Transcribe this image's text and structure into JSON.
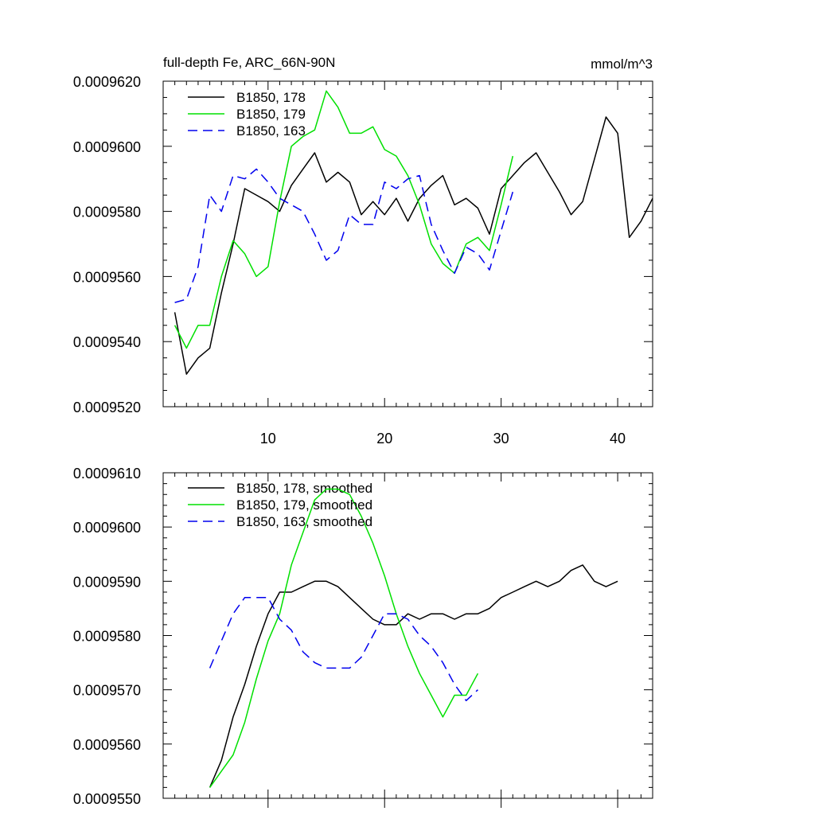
{
  "chart_data": [
    {
      "type": "line",
      "title": "full-depth Fe, ARC_66N-90N",
      "units": "mmol/m^3",
      "xlabel": "",
      "ylabel": "",
      "xlim": [
        1,
        43
      ],
      "ylim": [
        0.000952,
        0.000962
      ],
      "xticks": [
        "10",
        "20",
        "30",
        "40"
      ],
      "yticks": [
        "0.0009520",
        "0.0009540",
        "0.0009560",
        "0.0009580",
        "0.0009600",
        "0.0009620"
      ],
      "legend_position": "top-left",
      "series": [
        {
          "name": "B1850, 178",
          "color": "#000000",
          "dash": "solid",
          "x": [
            2,
            3,
            4,
            5,
            6,
            7,
            8,
            9,
            10,
            11,
            12,
            13,
            14,
            15,
            16,
            17,
            18,
            19,
            20,
            21,
            22,
            23,
            24,
            25,
            26,
            27,
            28,
            29,
            30,
            31,
            32,
            33,
            34,
            35,
            36,
            37,
            38,
            39,
            40,
            41,
            42,
            43
          ],
          "y": [
            0.0009549,
            0.000953,
            0.0009535,
            0.0009538,
            0.0009555,
            0.000957,
            0.0009587,
            0.0009585,
            0.0009583,
            0.000958,
            0.0009588,
            0.0009593,
            0.0009598,
            0.0009589,
            0.0009592,
            0.0009589,
            0.0009579,
            0.0009583,
            0.0009579,
            0.0009584,
            0.0009577,
            0.0009584,
            0.0009588,
            0.0009591,
            0.0009582,
            0.0009584,
            0.0009581,
            0.0009573,
            0.0009587,
            0.0009591,
            0.0009595,
            0.0009598,
            0.0009592,
            0.0009586,
            0.0009579,
            0.0009583,
            0.0009596,
            0.0009609,
            0.0009604,
            0.0009572,
            0.0009577,
            0.0009584
          ]
        },
        {
          "name": "B1850, 179",
          "color": "#00e000",
          "dash": "solid",
          "x": [
            2,
            3,
            4,
            5,
            6,
            7,
            8,
            9,
            10,
            11,
            12,
            13,
            14,
            15,
            16,
            17,
            18,
            19,
            20,
            21,
            22,
            23,
            24,
            25,
            26,
            27,
            28,
            29,
            30,
            31
          ],
          "y": [
            0.0009545,
            0.0009538,
            0.0009545,
            0.0009545,
            0.000956,
            0.0009571,
            0.0009567,
            0.000956,
            0.0009563,
            0.0009583,
            0.00096,
            0.0009603,
            0.0009605,
            0.0009617,
            0.0009612,
            0.0009604,
            0.0009604,
            0.0009606,
            0.0009599,
            0.0009597,
            0.0009591,
            0.0009582,
            0.000957,
            0.0009564,
            0.0009561,
            0.000957,
            0.0009572,
            0.0009568,
            0.0009582,
            0.0009597
          ]
        },
        {
          "name": "B1850, 163",
          "color": "#0000ee",
          "dash": "dashed",
          "x": [
            2,
            3,
            4,
            5,
            6,
            7,
            8,
            9,
            10,
            11,
            12,
            13,
            14,
            15,
            16,
            17,
            18,
            19,
            20,
            21,
            22,
            23,
            24,
            25,
            26,
            27,
            28,
            29,
            30,
            31
          ],
          "y": [
            0.0009552,
            0.0009553,
            0.0009563,
            0.0009585,
            0.000958,
            0.0009591,
            0.000959,
            0.0009593,
            0.0009589,
            0.0009584,
            0.0009582,
            0.000958,
            0.0009573,
            0.0009565,
            0.0009568,
            0.0009579,
            0.0009576,
            0.0009576,
            0.0009589,
            0.0009587,
            0.000959,
            0.0009591,
            0.0009576,
            0.0009568,
            0.0009561,
            0.0009569,
            0.0009567,
            0.0009562,
            0.0009574,
            0.0009586
          ]
        }
      ]
    },
    {
      "type": "line",
      "title": "",
      "xlabel": "",
      "ylabel": "",
      "xlim": [
        1,
        43
      ],
      "ylim": [
        0.000955,
        0.000961
      ],
      "xticks": [
        "10",
        "20",
        "30",
        "40"
      ],
      "yticks": [
        "0.0009550",
        "0.0009560",
        "0.0009570",
        "0.0009580",
        "0.0009590",
        "0.0009600",
        "0.0009610"
      ],
      "legend_position": "top-left",
      "series": [
        {
          "name": "B1850, 178, smoothed",
          "color": "#000000",
          "dash": "solid",
          "x": [
            5,
            6,
            7,
            8,
            9,
            10,
            11,
            12,
            13,
            14,
            15,
            16,
            17,
            18,
            19,
            20,
            21,
            22,
            23,
            24,
            25,
            26,
            27,
            28,
            29,
            30,
            31,
            32,
            33,
            34,
            35,
            36,
            37,
            38,
            39,
            40
          ],
          "y": [
            0.0009552,
            0.0009557,
            0.0009565,
            0.0009571,
            0.0009578,
            0.0009584,
            0.0009588,
            0.0009588,
            0.0009589,
            0.000959,
            0.000959,
            0.0009589,
            0.0009587,
            0.0009585,
            0.0009583,
            0.0009582,
            0.0009582,
            0.0009584,
            0.0009583,
            0.0009584,
            0.0009584,
            0.0009583,
            0.0009584,
            0.0009584,
            0.0009585,
            0.0009587,
            0.0009588,
            0.0009589,
            0.000959,
            0.0009589,
            0.000959,
            0.0009592,
            0.0009593,
            0.000959,
            0.0009589,
            0.000959
          ]
        },
        {
          "name": "B1850, 179, smoothed",
          "color": "#00e000",
          "dash": "solid",
          "x": [
            5,
            6,
            7,
            8,
            9,
            10,
            11,
            12,
            13,
            14,
            15,
            16,
            17,
            18,
            19,
            20,
            21,
            22,
            23,
            24,
            25,
            26,
            27,
            28
          ],
          "y": [
            0.0009552,
            0.0009555,
            0.0009558,
            0.0009564,
            0.0009572,
            0.0009579,
            0.0009584,
            0.0009593,
            0.0009599,
            0.0009605,
            0.0009607,
            0.0009607,
            0.0009606,
            0.0009602,
            0.0009597,
            0.0009591,
            0.0009584,
            0.0009578,
            0.0009573,
            0.0009569,
            0.0009565,
            0.0009569,
            0.0009569,
            0.0009573
          ]
        },
        {
          "name": "B1850, 163, smoothed",
          "color": "#0000ee",
          "dash": "dashed",
          "x": [
            5,
            6,
            7,
            8,
            9,
            10,
            11,
            12,
            13,
            14,
            15,
            16,
            17,
            18,
            19,
            20,
            21,
            22,
            23,
            24,
            25,
            26,
            27,
            28
          ],
          "y": [
            0.0009574,
            0.0009579,
            0.0009584,
            0.0009587,
            0.0009587,
            0.0009587,
            0.0009583,
            0.0009581,
            0.0009577,
            0.0009575,
            0.0009574,
            0.0009574,
            0.0009574,
            0.0009576,
            0.000958,
            0.0009584,
            0.0009584,
            0.0009583,
            0.000958,
            0.0009578,
            0.0009575,
            0.0009571,
            0.0009568,
            0.000957
          ]
        }
      ]
    }
  ]
}
